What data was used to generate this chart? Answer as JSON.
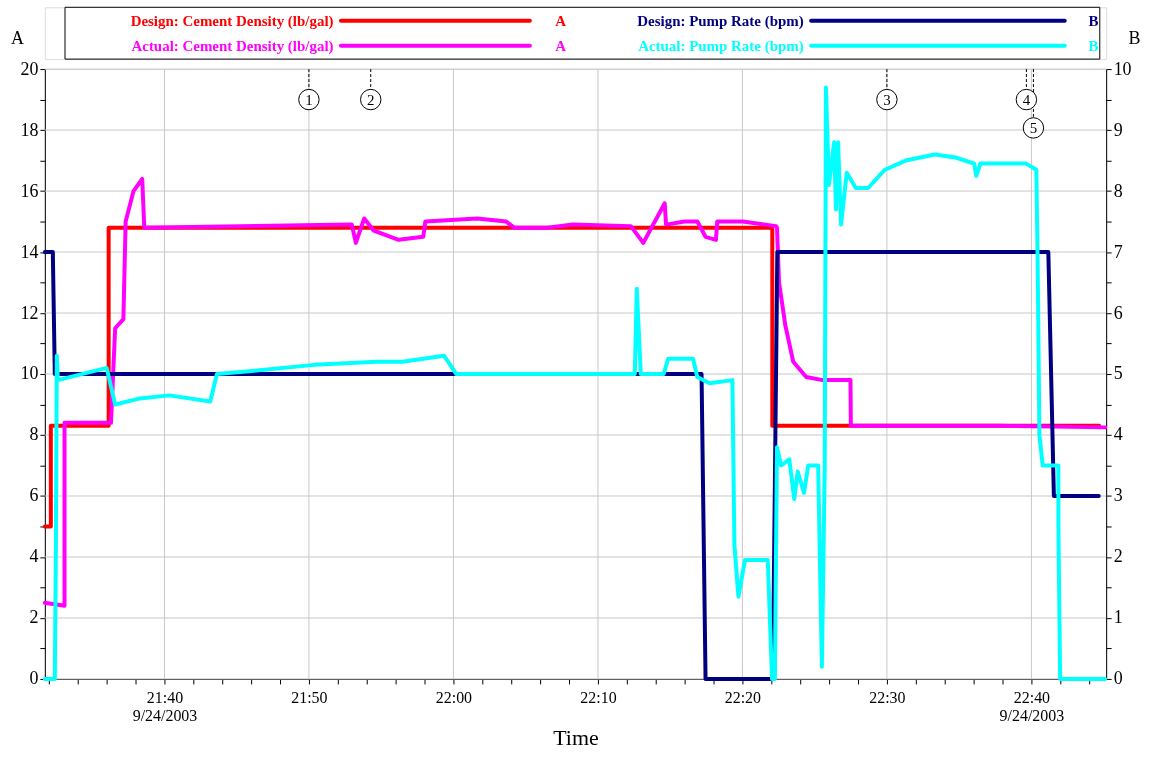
{
  "chart_data": {
    "type": "line",
    "xlabel": "Time",
    "ylabel": "A",
    "y2label": "B",
    "legend": "top",
    "grid": true,
    "xlim": [
      21.5287,
      22.7529
    ],
    "ylim": [
      0,
      20
    ],
    "y2lim": [
      0,
      10
    ],
    "xticks": [
      {
        "value": 21.5333,
        "label": null
      },
      {
        "value": 21.5667,
        "label": null
      },
      {
        "value": 21.6,
        "label": null
      },
      {
        "value": 21.6333,
        "label": null
      },
      {
        "value": 21.6667,
        "label": "21:40\n9/24/2003"
      },
      {
        "value": 21.7,
        "label": null
      },
      {
        "value": 21.7333,
        "label": null
      },
      {
        "value": 21.7667,
        "label": null
      },
      {
        "value": 21.8,
        "label": null
      },
      {
        "value": 21.8333,
        "label": "21:50"
      },
      {
        "value": 21.8667,
        "label": null
      },
      {
        "value": 21.9,
        "label": null
      },
      {
        "value": 21.9333,
        "label": null
      },
      {
        "value": 21.9667,
        "label": null
      },
      {
        "value": 22,
        "label": "22:00"
      },
      {
        "value": 22.0333,
        "label": null
      },
      {
        "value": 22.0667,
        "label": null
      },
      {
        "value": 22.1,
        "label": null
      },
      {
        "value": 22.1333,
        "label": null
      },
      {
        "value": 22.1667,
        "label": "22:10"
      },
      {
        "value": 22.2,
        "label": null
      },
      {
        "value": 22.2333,
        "label": null
      },
      {
        "value": 22.2667,
        "label": null
      },
      {
        "value": 22.3,
        "label": null
      },
      {
        "value": 22.3333,
        "label": "22:20"
      },
      {
        "value": 22.3667,
        "label": null
      },
      {
        "value": 22.4,
        "label": null
      },
      {
        "value": 22.4333,
        "label": null
      },
      {
        "value": 22.4667,
        "label": null
      },
      {
        "value": 22.5,
        "label": "22:30"
      },
      {
        "value": 22.5333,
        "label": null
      },
      {
        "value": 22.5667,
        "label": null
      },
      {
        "value": 22.6,
        "label": null
      },
      {
        "value": 22.6333,
        "label": null
      },
      {
        "value": 22.6667,
        "label": "22:40\n9/24/2003"
      },
      {
        "value": 22.7,
        "label": null
      },
      {
        "value": 22.7333,
        "label": null
      }
    ],
    "yticks": [
      0,
      {
        "value": 1,
        "label": null
      },
      2,
      {
        "value": 3,
        "label": null
      },
      4,
      {
        "value": 5,
        "label": null
      },
      6,
      {
        "value": 7,
        "label": null
      },
      8,
      {
        "value": 9,
        "label": null
      },
      10,
      {
        "value": 11,
        "label": null
      },
      12,
      {
        "value": 13,
        "label": null
      },
      14,
      {
        "value": 15,
        "label": null
      },
      16,
      {
        "value": 17,
        "label": null
      },
      18,
      {
        "value": 19,
        "label": null
      },
      20
    ],
    "y2ticks": [
      0,
      {
        "value": 0.5,
        "label": null
      },
      1,
      {
        "value": 1.5,
        "label": null
      },
      2,
      {
        "value": 2.5,
        "label": null
      },
      3,
      {
        "value": 3.5,
        "label": null
      },
      4,
      {
        "value": 4.5,
        "label": null
      },
      5,
      {
        "value": 5.5,
        "label": null
      },
      6,
      {
        "value": 6.5,
        "label": null
      },
      7,
      {
        "value": 7.5,
        "label": null
      },
      8,
      {
        "value": 8.5,
        "label": null
      },
      9,
      {
        "value": 9.5,
        "label": null
      },
      10
    ],
    "series": [
      {
        "name": "Design: Cement Density (lb/gal)",
        "color": "#ff0000",
        "axis": "y",
        "x": [
          21.5287,
          21.5356,
          21.5356,
          21.6023,
          21.6023,
          22.3678,
          22.3678,
          22.7448
        ],
        "values": [
          5,
          5,
          8.3,
          8.3,
          14.8,
          14.8,
          8.3,
          8.3
        ]
      },
      {
        "name": "Actual: Cement Density (lb/gal)",
        "color": "#ff00ff",
        "axis": "y",
        "x": [
          21.5287,
          21.5514,
          21.5514,
          21.605,
          21.6098,
          21.6193,
          21.6219,
          21.631,
          21.641,
          21.6434,
          21.8828,
          21.8874,
          21.8971,
          21.9081,
          21.9368,
          21.9652,
          21.9676,
          22.0274,
          22.0609,
          22.0701,
          22.1089,
          22.1376,
          22.2046,
          22.219,
          22.2437,
          22.2453,
          22.2667,
          22.2813,
          22.2908,
          22.3028,
          22.3043,
          22.3339,
          22.3722,
          22.3732,
          22.3756,
          22.3828,
          22.392,
          22.4069,
          22.4259,
          22.458,
          22.4584,
          22.6299,
          22.7517
        ],
        "values": [
          2.5,
          2.4,
          8.4,
          8.4,
          11.5,
          11.8,
          15,
          16,
          16.4,
          14.8,
          14.9,
          14.3,
          15.1,
          14.7,
          14.4,
          14.5,
          15.0,
          15.1,
          15.0,
          14.8,
          14.8,
          14.9,
          14.85,
          14.3,
          15.6,
          14.9,
          15.0,
          15.0,
          14.5,
          14.4,
          15.0,
          15.0,
          14.85,
          14.8,
          13,
          11.6,
          10.4,
          9.9,
          9.8,
          9.8,
          8.3,
          8.3,
          8.25
        ]
      },
      {
        "name": "Design: Pump Rate (bpm)",
        "color": "#000080",
        "axis": "y2",
        "x": [
          21.5287,
          21.5379,
          21.5402,
          22.2862,
          22.2908,
          22.3684,
          22.3736,
          22.6862,
          22.6926,
          22.7444
        ],
        "values": [
          7,
          7,
          5,
          5,
          0,
          0,
          7,
          7,
          3,
          3
        ]
      },
      {
        "name": "Actual: Pump Rate (bpm)",
        "color": "#00ffff",
        "axis": "y2",
        "x": [
          21.5287,
          21.5402,
          21.5414,
          21.5425,
          21.5437,
          21.6,
          21.6098,
          21.6385,
          21.6721,
          21.7195,
          21.7272,
          21.7678,
          21.8397,
          21.9115,
          21.9414,
          21.9891,
          22.0034,
          22.2092,
          22.2115,
          22.2161,
          22.2425,
          22.2477,
          22.2764,
          22.2813,
          22.2954,
          22.3218,
          22.3241,
          22.3287,
          22.3363,
          22.3626,
          22.3675,
          22.3708,
          22.3732,
          22.378,
          22.3874,
          22.3931,
          22.3971,
          22.4044,
          22.4092,
          22.4207,
          22.425,
          22.4283,
          22.4297,
          22.4331,
          22.4391,
          22.4412,
          22.4437,
          22.4471,
          22.4537,
          22.4641,
          22.4782,
          22.4977,
          22.5216,
          22.5552,
          22.5791,
          22.6007,
          22.6031,
          22.6078,
          22.6606,
          22.6724,
          22.6739,
          22.6759,
          22.6797,
          22.6977,
          22.6979,
          22.6998,
          22.7517
        ],
        "values": [
          0,
          0,
          2.1,
          5.3,
          4.9,
          5.1,
          4.5,
          4.6,
          4.65,
          4.55,
          5.0,
          5.05,
          5.15,
          5.2,
          5.2,
          5.3,
          5.0,
          5.0,
          6.4,
          5.0,
          5.0,
          5.25,
          5.25,
          4.95,
          4.85,
          4.9,
          2.2,
          1.35,
          1.95,
          1.95,
          0,
          0,
          3.8,
          3.5,
          3.6,
          2.95,
          3.4,
          3.05,
          3.5,
          3.5,
          0.2,
          3.5,
          9.7,
          8.1,
          8.8,
          7.7,
          8.8,
          7.45,
          8.3,
          8.05,
          8.05,
          8.35,
          8.5,
          8.6,
          8.55,
          8.45,
          8.25,
          8.45,
          8.45,
          8.35,
          6.8,
          4,
          3.5,
          3.5,
          2.4,
          0,
          0
        ]
      }
    ],
    "annotations": [
      {
        "text": "1",
        "x": 21.8333,
        "y": 19.0
      },
      {
        "text": "2",
        "x": 21.9046,
        "y": 19.0
      },
      {
        "text": "3",
        "x": 22.5,
        "y": 19.0
      },
      {
        "text": "4",
        "x": 22.6609,
        "y": 19.0
      },
      {
        "text": "5",
        "x": 22.669,
        "y": 18.07
      }
    ]
  }
}
